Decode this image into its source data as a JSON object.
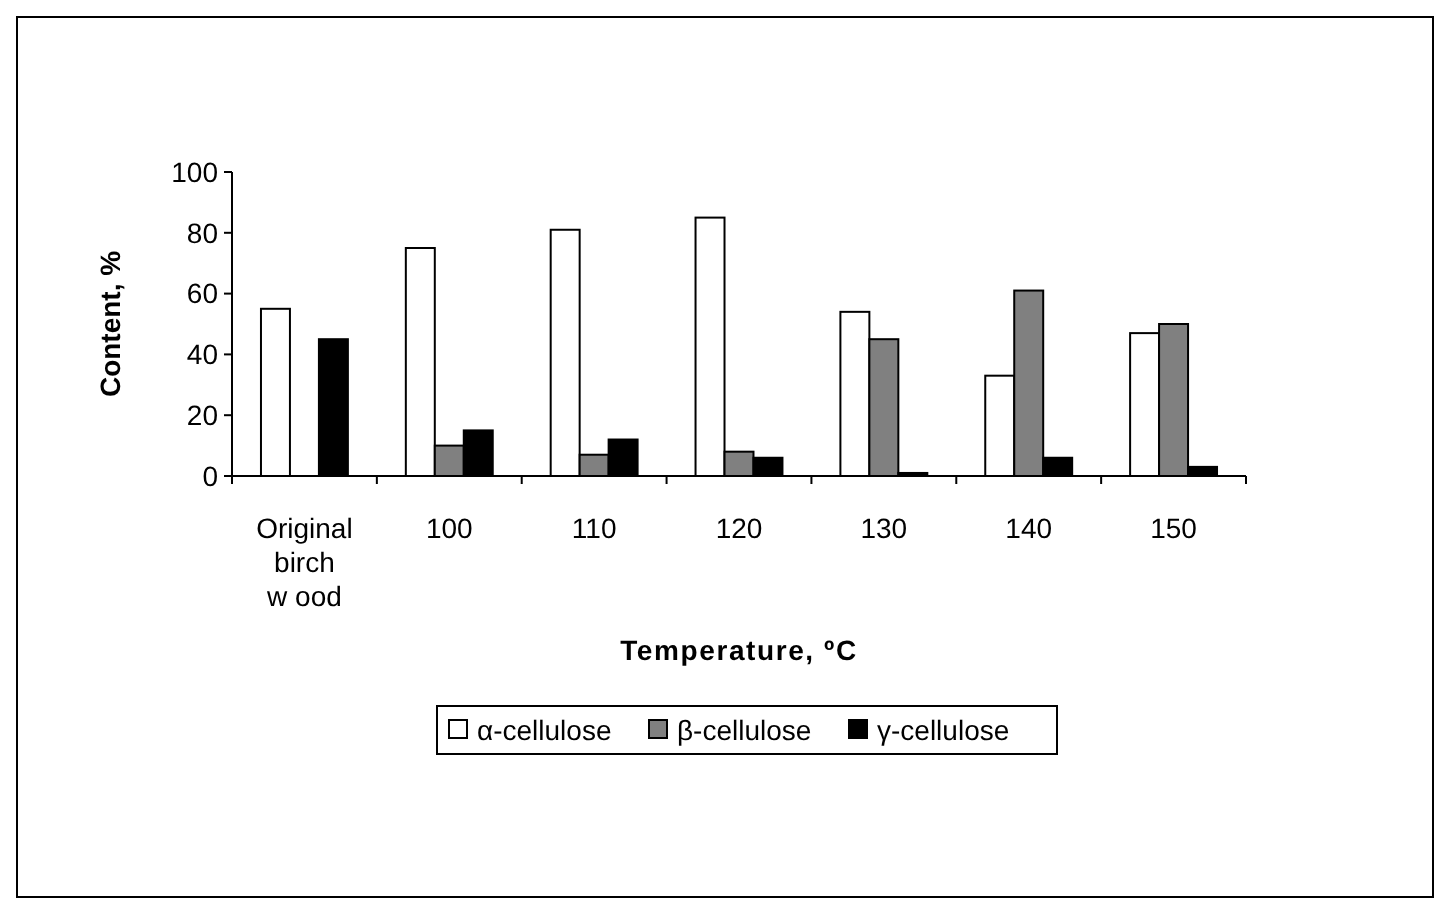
{
  "chart_data": {
    "type": "bar",
    "xlabel": "Temperature, ºC",
    "ylabel": "Content, %",
    "categories": [
      "Original birch w ood",
      "100",
      "110",
      "120",
      "130",
      "140",
      "150"
    ],
    "series": [
      {
        "name": "α-cellulose",
        "color": "#ffffff",
        "values": [
          55,
          75,
          81,
          85,
          54,
          33,
          47
        ]
      },
      {
        "name": "β-cellulose",
        "color": "#808080",
        "values": [
          null,
          10,
          7,
          8,
          45,
          61,
          50
        ]
      },
      {
        "name": "γ-cellulose",
        "color": "#000000",
        "values": [
          45,
          15,
          12,
          6,
          1,
          6,
          3
        ]
      }
    ],
    "ylim": [
      0,
      100
    ],
    "yticks": [
      0,
      20,
      40,
      60,
      80,
      100
    ],
    "grid": false,
    "legend": "bottom"
  }
}
